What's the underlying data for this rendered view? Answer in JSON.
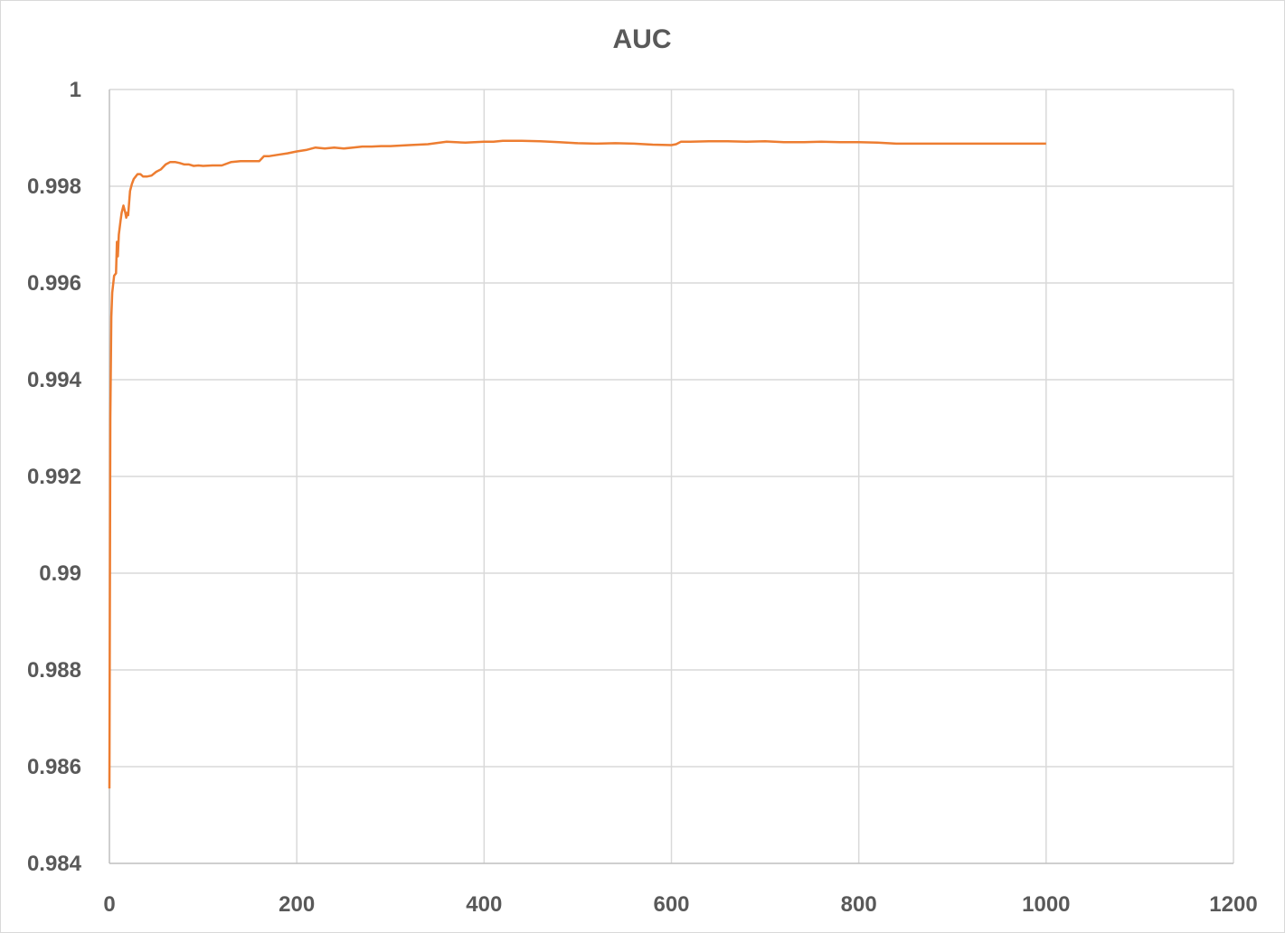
{
  "chart_data": {
    "type": "line",
    "title": "AUC",
    "xlabel": "",
    "ylabel": "",
    "xlim": [
      0,
      1200
    ],
    "ylim": [
      0.984,
      1
    ],
    "x_ticks": [
      0,
      200,
      400,
      600,
      800,
      1000,
      1200
    ],
    "y_ticks": [
      0.984,
      0.986,
      0.988,
      0.99,
      0.992,
      0.994,
      0.996,
      0.998,
      1
    ],
    "x_tick_labels": [
      "0",
      "200",
      "400",
      "600",
      "800",
      "1000",
      "1200"
    ],
    "y_tick_labels": [
      "0.984",
      "0.986",
      "0.988",
      "0.99",
      "0.992",
      "0.994",
      "0.996",
      "0.998",
      "1"
    ],
    "grid": true,
    "legend": "none",
    "series": [
      {
        "color": "#ed7d31",
        "x": [
          0,
          1,
          2,
          3,
          5,
          7,
          8,
          9,
          10,
          11,
          12,
          13,
          15,
          17,
          18,
          19,
          20,
          22,
          24,
          26,
          28,
          30,
          33,
          36,
          40,
          45,
          50,
          55,
          60,
          65,
          70,
          75,
          80,
          85,
          90,
          95,
          100,
          110,
          120,
          130,
          140,
          150,
          160,
          165,
          170,
          180,
          190,
          200,
          210,
          220,
          230,
          240,
          250,
          260,
          270,
          280,
          290,
          300,
          320,
          340,
          360,
          380,
          400,
          410,
          420,
          440,
          460,
          480,
          500,
          520,
          540,
          560,
          580,
          600,
          605,
          610,
          620,
          640,
          660,
          680,
          700,
          720,
          740,
          760,
          780,
          800,
          820,
          840,
          860,
          880,
          900,
          920,
          940,
          960,
          980,
          1000
        ],
        "y": [
          0.98555,
          0.9932,
          0.9953,
          0.9958,
          0.99615,
          0.9962,
          0.99685,
          0.99655,
          0.997,
          0.99715,
          0.9973,
          0.99745,
          0.9976,
          0.99745,
          0.99735,
          0.99745,
          0.9974,
          0.9979,
          0.99805,
          0.99815,
          0.9982,
          0.99825,
          0.99825,
          0.9982,
          0.9982,
          0.99822,
          0.9983,
          0.99835,
          0.99845,
          0.9985,
          0.9985,
          0.99848,
          0.99845,
          0.99845,
          0.99842,
          0.99843,
          0.99842,
          0.99843,
          0.99843,
          0.9985,
          0.99852,
          0.99852,
          0.99852,
          0.99862,
          0.99862,
          0.99865,
          0.99868,
          0.99872,
          0.99875,
          0.9988,
          0.99878,
          0.9988,
          0.99878,
          0.9988,
          0.99882,
          0.99882,
          0.99883,
          0.99883,
          0.99885,
          0.99887,
          0.99892,
          0.9989,
          0.99892,
          0.99892,
          0.99894,
          0.99894,
          0.99893,
          0.99891,
          0.99889,
          0.99888,
          0.99889,
          0.99888,
          0.99886,
          0.99885,
          0.99887,
          0.99892,
          0.99892,
          0.99893,
          0.99893,
          0.99892,
          0.99893,
          0.99891,
          0.99891,
          0.99892,
          0.99891,
          0.99891,
          0.9989,
          0.99888,
          0.99888,
          0.99888,
          0.99888,
          0.99888,
          0.99888,
          0.99888,
          0.99888,
          0.99888
        ]
      }
    ]
  }
}
